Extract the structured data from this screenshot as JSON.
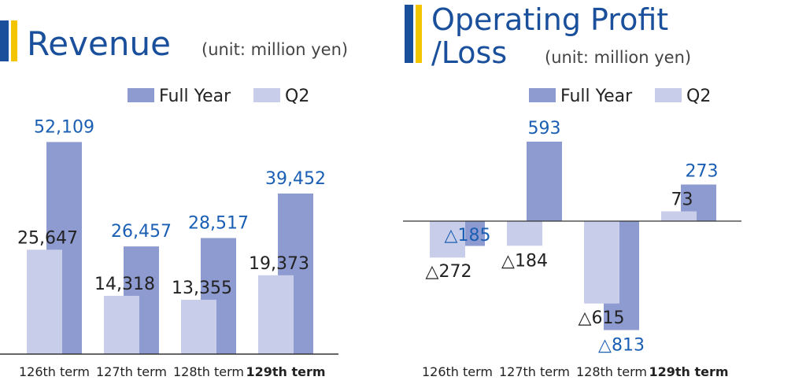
{
  "colors": {
    "full_year": "#8e9bd0",
    "q2": "#c8cde9",
    "title": "#1a4f9c",
    "accent_blue": "#1a4f9c",
    "accent_yellow": "#f2c500",
    "fy_label": "#1a5fb4",
    "q2_label": "#222222",
    "axis": "#333333"
  },
  "chart_data": [
    {
      "type": "bar",
      "title": "Revenue",
      "unit_note": "(unit: million yen)",
      "legend": [
        "Full Year",
        "Q2"
      ],
      "categories": [
        "126th term",
        "127th term",
        "128th term",
        "129th term"
      ],
      "highlight_category": "129th term",
      "series": [
        {
          "name": "Full Year",
          "values": [
            52109,
            26457,
            28517,
            39452
          ],
          "labels": [
            "52,109",
            "26,457",
            "28,517",
            "39,452"
          ]
        },
        {
          "name": "Q2",
          "values": [
            25647,
            14318,
            13355,
            19373
          ],
          "labels": [
            "25,647",
            "14,318",
            "13,355",
            "19,373"
          ]
        }
      ],
      "ylim": [
        0,
        58000
      ]
    },
    {
      "type": "bar",
      "title_line1": "Operating Profit",
      "title_line2": "/Loss",
      "unit_note": "(unit: million yen)",
      "legend": [
        "Full Year",
        "Q2"
      ],
      "categories": [
        "126th term",
        "127th term",
        "128th term",
        "129th term"
      ],
      "highlight_category": "129th term",
      "series": [
        {
          "name": "Full Year",
          "values": [
            -185,
            593,
            -813,
            273
          ],
          "labels": [
            "△185",
            "593",
            "△813",
            "273"
          ]
        },
        {
          "name": "Q2",
          "values": [
            -272,
            -184,
            -615,
            73
          ],
          "labels": [
            "△272",
            "△184",
            "△615",
            "73"
          ]
        }
      ],
      "ylim": [
        -870,
        650
      ]
    }
  ]
}
